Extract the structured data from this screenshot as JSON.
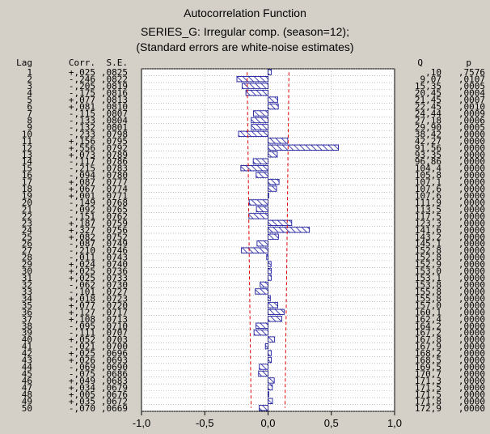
{
  "chart_data": {
    "type": "bar",
    "orientation": "horizontal",
    "title": "Autocorrelation Function",
    "subtitle_lines": [
      "SERIES_G: Irregular comp. (season=12);",
      "(Standard errors are white-noise estimates)"
    ],
    "headers": {
      "lag": "Lag",
      "corr": "Corr.",
      "se": "S.E.",
      "q": "Q",
      "p": "p"
    },
    "xlim": [
      -1.0,
      1.0
    ],
    "xticks": [
      "-1,0",
      "-0,5",
      "0,0",
      "0,5",
      "1,0"
    ],
    "grid": true,
    "confidence_limit_style": "dashed red",
    "bar_color": "#1c1ca0",
    "limit_color": "#e00000",
    "lags": [
      1,
      2,
      3,
      4,
      5,
      6,
      7,
      8,
      9,
      10,
      11,
      12,
      13,
      14,
      15,
      16,
      17,
      18,
      19,
      20,
      21,
      22,
      23,
      24,
      25,
      26,
      27,
      28,
      29,
      30,
      31,
      32,
      33,
      34,
      35,
      36,
      37,
      38,
      39,
      40,
      41,
      42,
      43,
      44,
      45,
      46,
      47,
      48,
      49,
      50
    ],
    "correlations": [
      0.025,
      -0.246,
      -0.205,
      -0.175,
      0.077,
      0.081,
      -0.115,
      -0.133,
      -0.132,
      -0.233,
      0.156,
      0.556,
      0.073,
      -0.117,
      -0.215,
      -0.094,
      0.087,
      0.067,
      0.001,
      -0.149,
      -0.092,
      -0.151,
      0.187,
      0.327,
      0.082,
      -0.087,
      -0.21,
      -0.011,
      0.024,
      0.025,
      0.025,
      -0.062,
      -0.101,
      0.018,
      0.077,
      0.127,
      0.108,
      -0.095,
      -0.111,
      0.052,
      -0.021,
      0.025,
      0.026,
      -0.069,
      -0.075,
      0.049,
      0.034,
      0.005,
      0.035,
      -0.07
    ],
    "corr_labels": [
      "+,025",
      "-,246",
      "-,205",
      "-,175",
      "+,077",
      "+,081",
      "-,115",
      "-,133",
      "-,132",
      "-,233",
      "+,156",
      "+,556",
      "+,073",
      "-,117",
      "-,215",
      "-,094",
      "+,087",
      "+,067",
      "+,001",
      "-,149",
      "-,092",
      "-,151",
      "+,187",
      "+,327",
      "+,082",
      "-,087",
      "-,210",
      "-,011",
      "+,024",
      "+,025",
      "+,025",
      "-,062",
      "-,101",
      "+,018",
      "+,077",
      "+,127",
      "+,108",
      "-,095",
      "-,111",
      "+,052",
      "-,021",
      "+,025",
      "+,026",
      "-,069",
      "-,075",
      "+,049",
      "+,034",
      "+,005",
      "+,035",
      "-,070"
    ],
    "standard_errors": [
      0.0825,
      0.0822,
      0.0819,
      0.0816,
      0.0813,
      0.081,
      0.0807,
      0.0804,
      0.0801,
      0.0798,
      0.0795,
      0.0792,
      0.0789,
      0.0786,
      0.0783,
      0.078,
      0.0777,
      0.0774,
      0.0771,
      0.0768,
      0.0765,
      0.0762,
      0.0759,
      0.0756,
      0.0752,
      0.0749,
      0.0746,
      0.0743,
      0.074,
      0.0736,
      0.0733,
      0.073,
      0.0727,
      0.0723,
      0.072,
      0.0717,
      0.0713,
      0.071,
      0.0707,
      0.0703,
      0.07,
      0.0696,
      0.0693,
      0.069,
      0.0686,
      0.0683,
      0.0679,
      0.0676,
      0.0672,
      0.0669
    ],
    "se_labels": [
      ",0825",
      ",0822",
      ",0819",
      ",0816",
      ",0813",
      ",0810",
      ",0807",
      ",0804",
      ",0801",
      ",0798",
      ",0795",
      ",0792",
      ",0789",
      ",0786",
      ",0783",
      ",0780",
      ",0777",
      ",0774",
      ",0771",
      ",0768",
      ",0765",
      ",0762",
      ",0759",
      ",0756",
      ",0752",
      ",0749",
      ",0746",
      ",0743",
      ",0740",
      ",0736",
      ",0733",
      ",0730",
      ",0727",
      ",0723",
      ",0720",
      ",0717",
      ",0713",
      ",0710",
      ",0707",
      ",0703",
      ",0700",
      ",0696",
      ",0693",
      ",0690",
      ",0686",
      ",0683",
      ",0679",
      ",0676",
      ",0672",
      ",0669"
    ],
    "q_labels": [
      ",10",
      "9,07",
      "15,35",
      "20,45",
      "21,45",
      "22,45",
      "24,44",
      "27,18",
      "29,90",
      "38,42",
      "42,27",
      "91,56",
      "93,35",
      "96,86",
      "104,4",
      "105,8",
      "107,1",
      "107,6",
      "107,6",
      "111,9",
      "113,5",
      "117,5",
      "123,3",
      "141,6",
      "143,2",
      "145,1",
      "152,8",
      "152,8",
      "152,9",
      "153,0",
      "153,1",
      "153,8",
      "155,8",
      "155,8",
      "157,0",
      "160,1",
      "162,4",
      "164,2",
      "167,2",
      "167,8",
      "167,9",
      "168,2",
      "168,5",
      "169,5",
      "170,7",
      "171,3",
      "171,5",
      "171,5",
      "171,8",
      "172,9"
    ],
    "p_labels": [
      ",7576",
      ",0107",
      ",0005",
      ",0004",
      ",0007",
      ",0010",
      ",0009",
      ",0006",
      ",0005",
      ",0000",
      ",0000",
      ",0000",
      ",0000",
      ",0000",
      ",0000",
      ",0000",
      ",0000",
      ",0000",
      ",0000",
      ",0000",
      ",0000",
      ",0000",
      ",0000",
      ",0000",
      ",0000",
      ",0000",
      ",0000",
      ",0000",
      ",0000",
      ",0000",
      ",0000",
      ",0000",
      ",0000",
      ",0000",
      ",0000",
      ",0000",
      ",0000",
      ",0000",
      ",0000",
      ",0000",
      ",0000",
      ",0000",
      ",0000",
      ",0000",
      ",0000",
      ",0000",
      ",0000",
      ",0000",
      ",0000",
      ",0000"
    ]
  }
}
